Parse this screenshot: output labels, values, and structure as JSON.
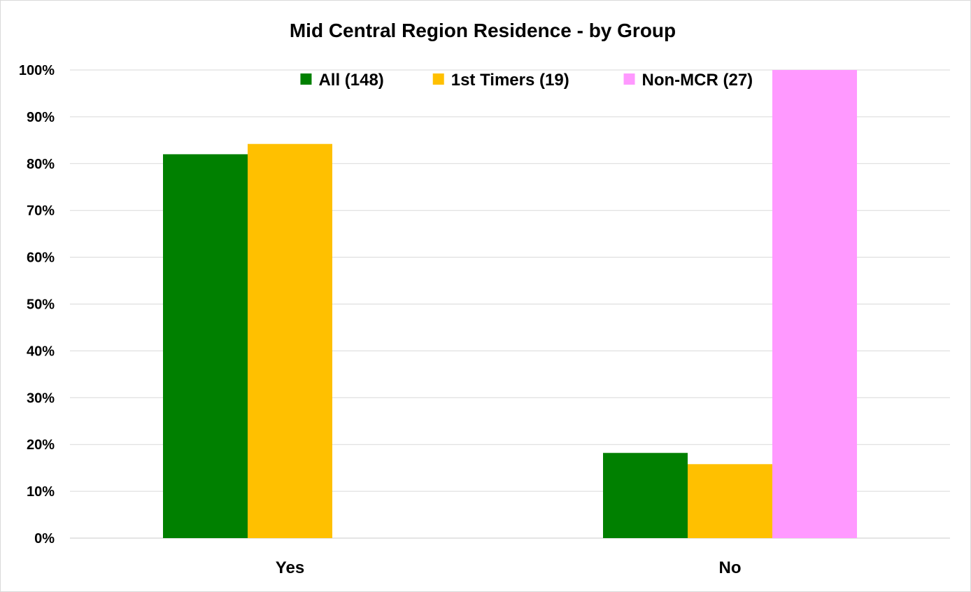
{
  "chart_data": {
    "type": "bar",
    "title": "Mid Central Region Residence - by Group",
    "xlabel": "",
    "ylabel": "",
    "categories": [
      "Yes",
      "No"
    ],
    "series": [
      {
        "name": "All (148)",
        "values": [
          82,
          18.2
        ],
        "color": "#008000"
      },
      {
        "name": "1st Timers (19)",
        "values": [
          84.2,
          15.8
        ],
        "color": "#FFC000"
      },
      {
        "name": "Non-MCR (27)",
        "values": [
          0,
          100
        ],
        "color": "#FF99FF"
      }
    ],
    "ylim": [
      0,
      100
    ],
    "yticks": [
      "0%",
      "10%",
      "20%",
      "30%",
      "40%",
      "50%",
      "60%",
      "70%",
      "80%",
      "90%",
      "100%"
    ],
    "grid": true,
    "legend_position": "top-center"
  }
}
